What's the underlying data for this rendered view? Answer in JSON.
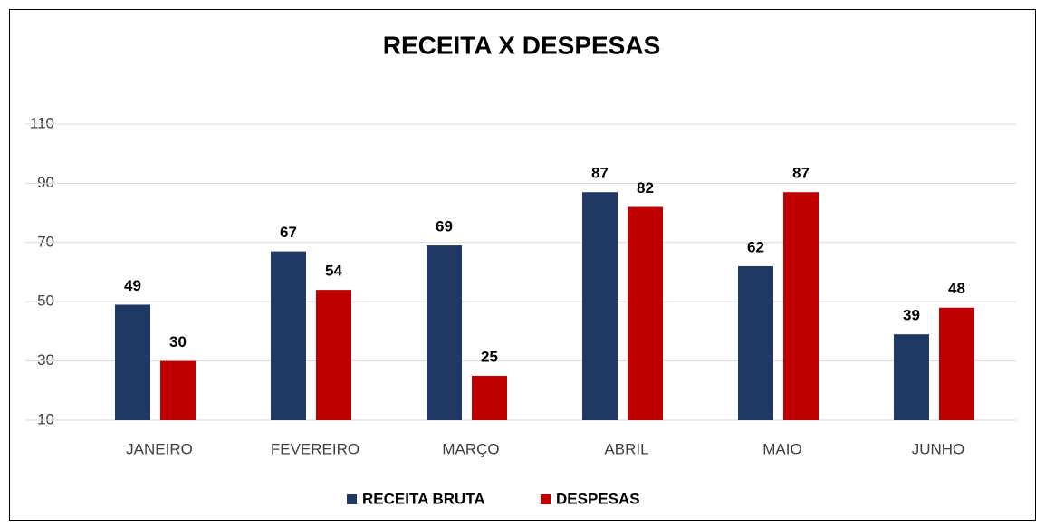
{
  "chart_data": {
    "type": "bar",
    "title": "RECEITA X DESPESAS",
    "categories": [
      "JANEIRO",
      "FEVEREIRO",
      "MARÇO",
      "ABRIL",
      "MAIO",
      "JUNHO"
    ],
    "series": [
      {
        "name": "RECEITA BRUTA",
        "color": "#203864",
        "values": [
          49,
          67,
          69,
          87,
          62,
          39
        ]
      },
      {
        "name": "DESPESAS",
        "color": "#c00000",
        "values": [
          30,
          54,
          25,
          82,
          87,
          48
        ]
      }
    ],
    "ylim": [
      10,
      110
    ],
    "yticks": [
      10,
      30,
      50,
      70,
      90,
      110
    ],
    "grid": true,
    "legend": "bottom"
  }
}
